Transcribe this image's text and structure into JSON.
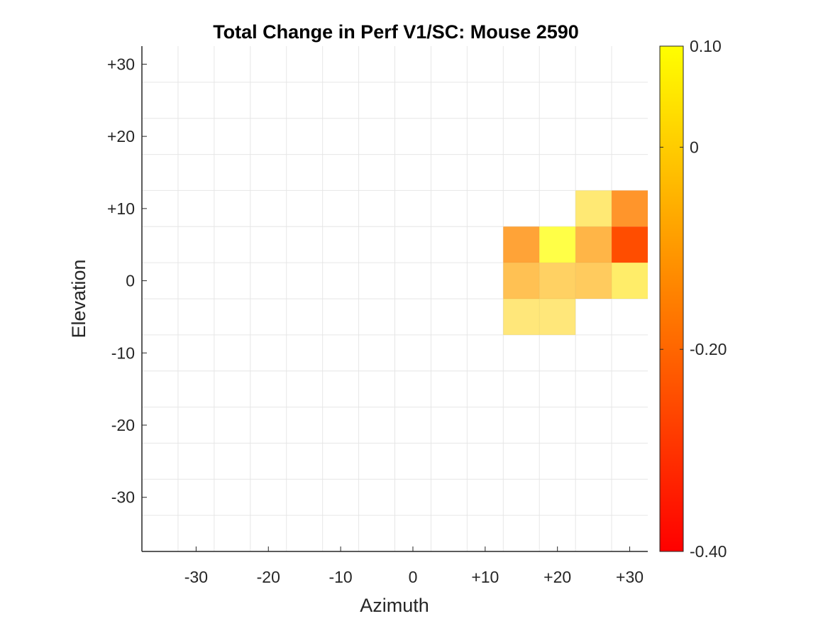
{
  "chart_data": {
    "type": "heatmap",
    "title": "Total Change in Perf V1/SC: Mouse 2590",
    "xlabel": "Azimuth",
    "ylabel": "Elevation",
    "xlim": [
      -37.5,
      32.5
    ],
    "ylim": [
      -37.5,
      32.5
    ],
    "cell_size": 5,
    "x_ticks": [
      -30,
      -20,
      -10,
      0,
      10,
      20,
      30
    ],
    "x_tick_labels": [
      "-30",
      "-20",
      "-10",
      "0",
      "+10",
      "+20",
      "+30"
    ],
    "y_ticks": [
      30,
      20,
      10,
      0,
      -10,
      -20,
      -30
    ],
    "y_tick_labels": [
      "+30",
      "+20",
      "+10",
      "0",
      "-10",
      "-20",
      "-30"
    ],
    "grid": true,
    "colormap": "autumn",
    "colormap_colors": [
      "#ff0000",
      "#ffff00"
    ],
    "color_limits": [
      -0.4,
      0.1
    ],
    "colorbar_ticks": [
      0.1,
      0,
      -0.2,
      -0.4
    ],
    "colorbar_tick_labels": [
      "0.10",
      "0",
      "-0.20",
      "-0.40"
    ],
    "colorbar_location": "right",
    "cell_alpha": 0.5,
    "cells": [
      {
        "x": 25,
        "y": 10,
        "value": 0.02
      },
      {
        "x": 30,
        "y": 10,
        "value": -0.15
      },
      {
        "x": 15,
        "y": 5,
        "value": -0.13
      },
      {
        "x": 20,
        "y": 5,
        "value": 0.1
      },
      {
        "x": 25,
        "y": 5,
        "value": -0.1
      },
      {
        "x": 30,
        "y": 5,
        "value": -0.25
      },
      {
        "x": 15,
        "y": 0,
        "value": -0.08
      },
      {
        "x": 20,
        "y": 0,
        "value": -0.05
      },
      {
        "x": 25,
        "y": 0,
        "value": -0.06
      },
      {
        "x": 30,
        "y": 0,
        "value": 0.04
      },
      {
        "x": 15,
        "y": -5,
        "value": 0.01
      },
      {
        "x": 20,
        "y": -5,
        "value": 0.01
      }
    ]
  }
}
